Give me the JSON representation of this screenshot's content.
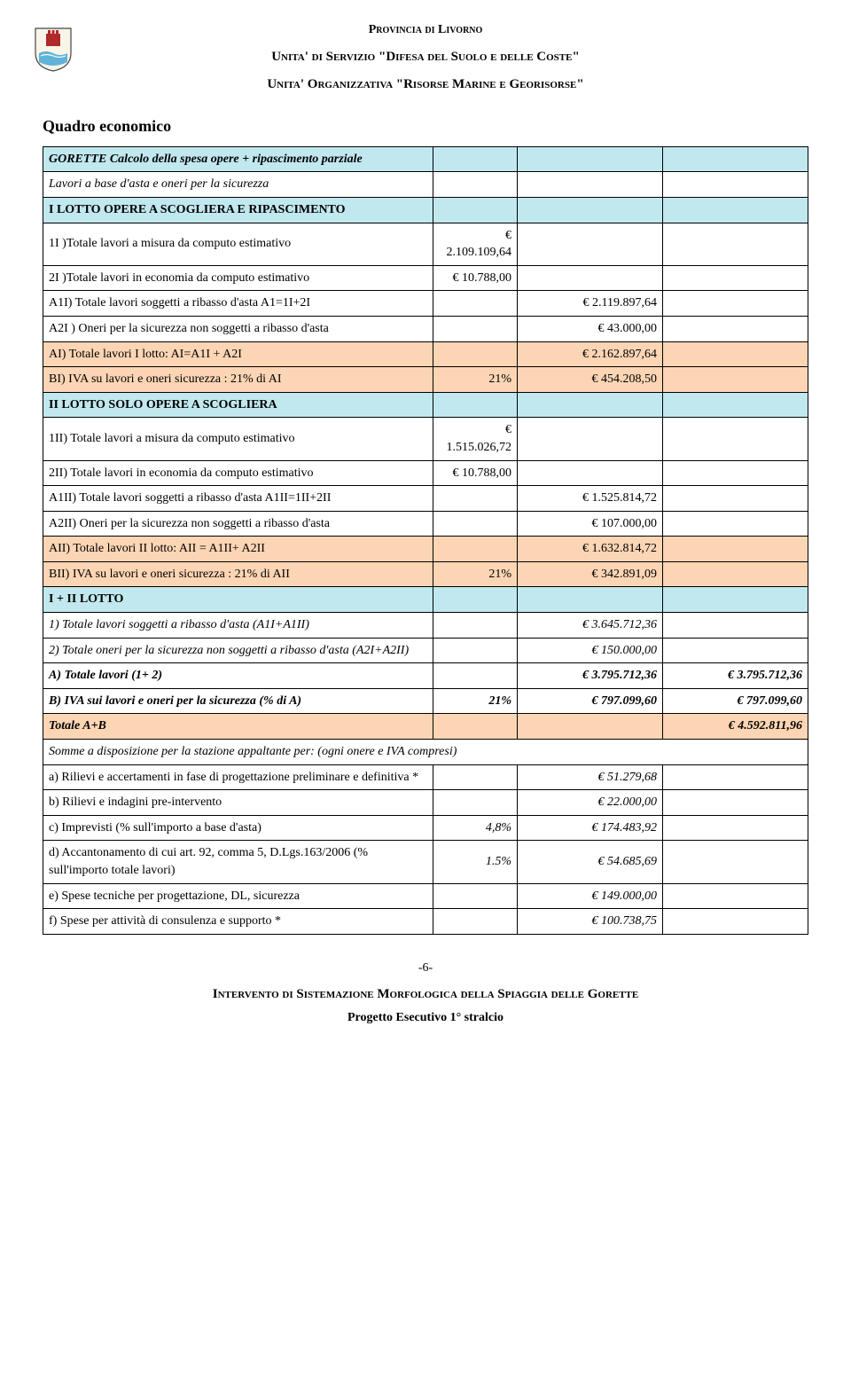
{
  "header": {
    "line1": "Provincia di Livorno",
    "line2": "Unita' di Servizio \"Difesa del Suolo e delle Coste\"",
    "line3": "Unita' Organizzativa \"Risorse Marine e Georisorse\""
  },
  "doc_title": "Quadro economico",
  "colors": {
    "section_bg": "#c1e8ef",
    "highlight_bg": "#fcd5b4",
    "border": "#000000",
    "text": "#000000",
    "background": "#ffffff"
  },
  "fonts": {
    "family": "Times New Roman",
    "body_size_pt": 11,
    "title_size_pt": 14,
    "header_size_pt": 12
  },
  "col_widths_pct": [
    51,
    11,
    19,
    19
  ],
  "rows": [
    {
      "cls": "blue it b",
      "c1": "GORETTE  Calcolo della spesa opere + ripascimento parziale",
      "c2": "",
      "c3": "",
      "c4": ""
    },
    {
      "cls": "it",
      "c1": "Lavori a base d'asta e oneri per la sicurezza",
      "c2": "",
      "c3": "",
      "c4": ""
    },
    {
      "cls": "blue b",
      "c1": "I LOTTO OPERE A SCOGLIERA E RIPASCIMENTO",
      "c2": "",
      "c3": "",
      "c4": ""
    },
    {
      "cls": "",
      "c1": "1I )Totale lavori a misura da computo estimativo",
      "c2": "€ 2.109.109,64",
      "c3": "",
      "c4": ""
    },
    {
      "cls": "",
      "c1": "2I )Totale lavori in economia da computo estimativo",
      "c2": "€ 10.788,00",
      "c3": "",
      "c4": ""
    },
    {
      "cls": "",
      "c1": "A1I) Totale lavori soggetti a ribasso d'asta A1=1I+2I",
      "c2": "",
      "c3": "€ 2.119.897,64",
      "c4": ""
    },
    {
      "cls": "",
      "c1": "A2I ) Oneri per la sicurezza non soggetti a ribasso d'asta",
      "c2": "",
      "c3": "€ 43.000,00",
      "c4": ""
    },
    {
      "cls": "peach",
      "c1": "AI) Totale lavori I lotto: AI=A1I + A2I",
      "c2": "",
      "c3": "€ 2.162.897,64",
      "c4": ""
    },
    {
      "cls": "peach",
      "c1": "BI) IVA su lavori  e oneri sicurezza : 21% di AI",
      "c2": "21%",
      "c3": "€ 454.208,50",
      "c4": ""
    },
    {
      "cls": "blue b",
      "c1": "II LOTTO SOLO OPERE A SCOGLIERA",
      "c2": "",
      "c3": "",
      "c4": ""
    },
    {
      "cls": "",
      "c1": "1II) Totale lavori a misura da computo estimativo",
      "c2": "€ 1.515.026,72",
      "c3": "",
      "c4": ""
    },
    {
      "cls": "",
      "c1": "2II) Totale lavori in economia da computo estimativo",
      "c2": "€ 10.788,00",
      "c3": "",
      "c4": ""
    },
    {
      "cls": "",
      "c1": "A1II) Totale lavori  soggetti a ribasso d'asta A1II=1II+2II",
      "c2": "",
      "c3": "€ 1.525.814,72",
      "c4": ""
    },
    {
      "cls": "",
      "c1": "A2II) Oneri per la sicurezza non soggetti a ribasso d'asta",
      "c2": "",
      "c3": "€ 107.000,00",
      "c4": ""
    },
    {
      "cls": "peach",
      "c1": "AII) Totale lavori II lotto: AII = A1II+ A2II",
      "c2": "",
      "c3": "€ 1.632.814,72",
      "c4": ""
    },
    {
      "cls": "peach",
      "c1": "BII) IVA su lavori e oneri sicurezza : 21% di AII",
      "c2": "21%",
      "c3": "€ 342.891,09",
      "c4": ""
    },
    {
      "cls": "blue b",
      "c1": "I + II LOTTO",
      "c2": "",
      "c3": "",
      "c4": ""
    },
    {
      "cls": "it",
      "c1": "1) Totale lavori  soggetti a ribasso d'asta (A1I+A1II)",
      "c2": "",
      "c3": "€ 3.645.712,36",
      "c4": ""
    },
    {
      "cls": "it",
      "c1": "2) Totale oneri per la sicurezza  non soggetti a ribasso d'asta (A2I+A2II)",
      "c2": "",
      "c3": "€ 150.000,00",
      "c4": ""
    },
    {
      "cls": "it b",
      "c1": "A) Totale  lavori   (1+ 2)",
      "c2": "",
      "c3": "€ 3.795.712,36",
      "c4": "€ 3.795.712,36"
    },
    {
      "cls": "it b",
      "c1": "B) IVA sui lavori e oneri per la sicurezza (% di A)",
      "c2": "21%",
      "c3": "€ 797.099,60",
      "c4": "€ 797.099,60"
    },
    {
      "cls": "peach it b",
      "c1": " Totale A+B",
      "c2": "",
      "c3": "",
      "c4": "€ 4.592.811,96"
    },
    {
      "cls": "it",
      "c1": "Somme a disposizione per la stazione appaltante per:  (ogni onere e IVA compresi)",
      "c2": "",
      "c3": "",
      "c4": "",
      "span": true
    },
    {
      "cls": "",
      "c1": "a) Rilievi e accertamenti in fase di progettazione preliminare e definitiva *",
      "c2": "",
      "c3": "€ 51.279,68",
      "c4": "",
      "c3_it": true
    },
    {
      "cls": "",
      "c1": "b) Rilievi e indagini pre-intervento",
      "c2": "",
      "c3": "€ 22.000,00",
      "c4": "",
      "c3_it": true
    },
    {
      "cls": "",
      "c1": "c) Imprevisti  (% sull'importo a base d'asta)",
      "c2": "4,8%",
      "c3": "€ 174.483,92",
      "c4": "",
      "c2_it": true,
      "c3_it": true
    },
    {
      "cls": "",
      "c1": "d) Accantonamento di cui art. 92, comma 5, D.Lgs.163/2006 (% sull'importo totale lavori)",
      "c2": "1.5%",
      "c3": "€ 54.685,69",
      "c4": "",
      "c2_it": true,
      "c3_it": true
    },
    {
      "cls": "",
      "c1": "e) Spese tecniche per progettazione, DL, sicurezza",
      "c2": "",
      "c3": "€ 149.000,00",
      "c4": "",
      "c3_it": true
    },
    {
      "cls": "",
      "c1": "f) Spese per attività di consulenza e supporto *",
      "c2": "",
      "c3": "€ 100.738,75",
      "c4": "",
      "c3_it": true
    }
  ],
  "footer": {
    "pagenum": "-6-",
    "line1": "Intervento di Sistemazione Morfologica della Spiaggia  delle Gorette",
    "line2": "Progetto Esecutivo 1° stralcio"
  }
}
